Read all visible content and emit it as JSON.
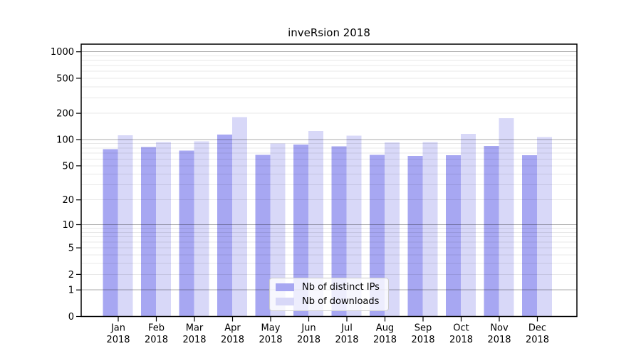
{
  "chart_data": {
    "type": "bar",
    "title": "inveRsion 2018",
    "categories": [
      "Jan",
      "Feb",
      "Mar",
      "Apr",
      "May",
      "Jun",
      "Jul",
      "Aug",
      "Sep",
      "Oct",
      "Nov",
      "Dec"
    ],
    "x_year": "2018",
    "series": [
      {
        "name": "Nb of distinct IPs",
        "color": "#a7a7f2",
        "values": [
          78,
          82,
          75,
          114,
          67,
          88,
          84,
          67,
          65,
          66,
          85,
          66
        ]
      },
      {
        "name": "Nb of downloads",
        "color": "#d8d8f8",
        "values": [
          112,
          94,
          96,
          180,
          90,
          125,
          111,
          93,
          94,
          117,
          175,
          107
        ]
      }
    ],
    "yscale": "log1p",
    "yticks": [
      0,
      1,
      2,
      5,
      10,
      20,
      50,
      100,
      200,
      500,
      1000
    ],
    "ylim": [
      0,
      1220
    ],
    "xlabel": "",
    "ylabel": "",
    "grid": true,
    "legend_position": "lower center inside",
    "background": "#ffffff",
    "axis_color": "#000000",
    "gridline_major_color": "#aaaaaa",
    "gridline_minor_color": "#e8e8e8"
  }
}
